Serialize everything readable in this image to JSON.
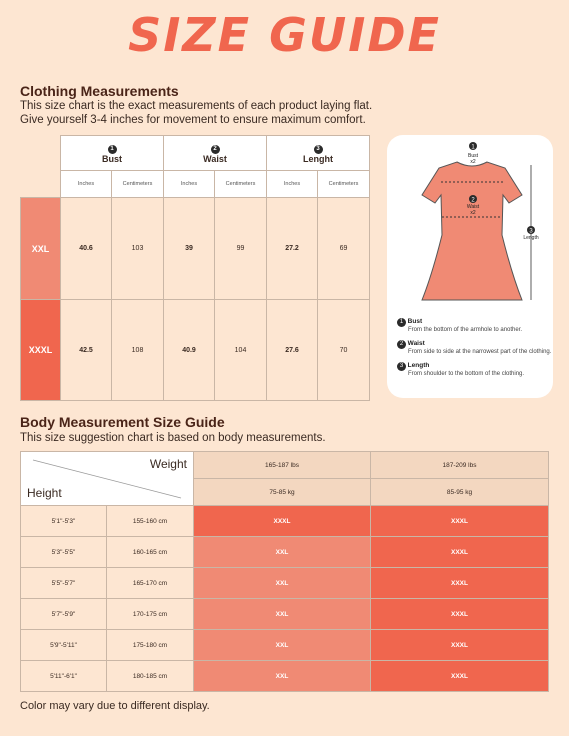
{
  "title": "SIZE GUIDE",
  "clothing": {
    "heading": "Clothing Measurements",
    "desc1": "This size chart is the exact measurements of each product laying flat.",
    "desc2": "Give yourself 3-4 inches for movement to ensure maximum comfort.",
    "columns": [
      {
        "num": "1",
        "label": "Bust"
      },
      {
        "num": "2",
        "label": "Waist"
      },
      {
        "num": "3",
        "label": "Lenght"
      }
    ],
    "unit_in": "Inches",
    "unit_cm": "Centimeters",
    "rows": [
      {
        "size": "XXL",
        "bust_in": "40.6",
        "bust_cm": "103",
        "waist_in": "39",
        "waist_cm": "99",
        "len_in": "27.2",
        "len_cm": "69",
        "color": "#f08a74"
      },
      {
        "size": "XXXL",
        "bust_in": "42.5",
        "bust_cm": "108",
        "waist_in": "40.9",
        "waist_cm": "104",
        "len_in": "27.6",
        "len_cm": "70",
        "color": "#f0664e"
      }
    ]
  },
  "diagram": {
    "bust_label": "Bust",
    "bust_mult": "x2",
    "waist_label": "Waist",
    "waist_mult": "x2",
    "length_label": "Length",
    "legend": [
      {
        "num": "1",
        "title": "Bust",
        "text": "From the bottom of the armhole to another."
      },
      {
        "num": "2",
        "title": "Waist",
        "text": "From side to side at the narrowest part of the clothing."
      },
      {
        "num": "3",
        "title": "Length",
        "text": "From shoulder to the bottom of the clothing."
      }
    ]
  },
  "body": {
    "heading": "Body Measurement Size Guide",
    "desc": "This size suggestion chart is based on body measurements.",
    "weight_label": "Weight",
    "height_label": "Height",
    "weights": [
      {
        "lbs": "165-187 lbs",
        "kg": "75-85 kg"
      },
      {
        "lbs": "187-209 lbs",
        "kg": "85-95 kg"
      }
    ],
    "rows": [
      {
        "ft": "5'1\"-5'3\"",
        "cm": "155-160 cm",
        "s1": "XXXL",
        "s2": "XXXL"
      },
      {
        "ft": "5'3\"-5'5\"",
        "cm": "160-165 cm",
        "s1": "XXL",
        "s2": "XXXL"
      },
      {
        "ft": "5'5\"-5'7\"",
        "cm": "165-170 cm",
        "s1": "XXL",
        "s2": "XXXL"
      },
      {
        "ft": "5'7\"-5'9\"",
        "cm": "170-175 cm",
        "s1": "XXL",
        "s2": "XXXL"
      },
      {
        "ft": "5'9\"-5'11\"",
        "cm": "175-180 cm",
        "s1": "XXL",
        "s2": "XXXL"
      },
      {
        "ft": "5'11\"-6'1\"",
        "cm": "180-185 cm",
        "s1": "XXL",
        "s2": "XXXL"
      }
    ]
  },
  "footnote": "Color may vary due to different display.",
  "colors": {
    "xxl": "#f08a74",
    "xxxl": "#f0664e",
    "dress": "#f08a74"
  }
}
